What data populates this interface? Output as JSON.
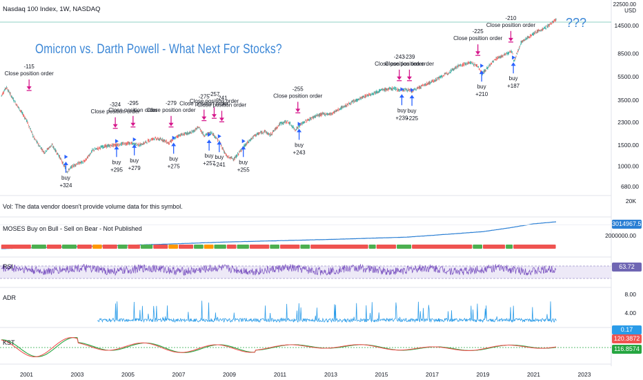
{
  "header": {
    "symbol_line": "Nasdaq 100 Index, 1W, NASDAQ"
  },
  "overlay": {
    "title": "Omicron vs. Darth Powell - What Next For Stocks?",
    "question": "???"
  },
  "price_axis": {
    "unit": "USD",
    "top_label": "22500.00",
    "ticks": [
      "14500.00",
      "8500.00",
      "5500.00",
      "3500.00",
      "2300.00",
      "1500.00",
      "1000.00",
      "680.00"
    ]
  },
  "time_axis": {
    "ticks": [
      "2001",
      "2003",
      "2005",
      "2007",
      "2009",
      "2011",
      "2013",
      "2015",
      "2017",
      "2019",
      "2021",
      "2023"
    ]
  },
  "panes": {
    "vol": {
      "label": "Vol: The data vendor doesn't provide volume data for this symbol.",
      "axis_label": "20K"
    },
    "moses": {
      "label": "MOSES Buy on Bull - Sell on Bear - Not Published",
      "value": "3014967.55",
      "axis_label": "2000000.00",
      "value_color": "#2a7fd4"
    },
    "rsi": {
      "label": "RSI",
      "value": "63.72",
      "value_color": "#6f66b3"
    },
    "adr": {
      "label": "ADR",
      "value": "0.17",
      "ticks": [
        "8.00",
        "4.00"
      ],
      "value_color": "#2a9be8"
    },
    "kst": {
      "label": "KST",
      "value_red": "120.3872",
      "value_green": "116.8574",
      "red_color": "#ef5350",
      "green_color": "#26a641"
    }
  },
  "chart_data": {
    "type": "line",
    "title": "Omicron vs. Darth Powell - What Next For Stocks?",
    "scale": "log",
    "x_range": [
      "2000",
      "2023"
    ],
    "series": [
      {
        "name": "Nasdaq 100 Index",
        "x": [
          2000.0,
          2000.2,
          2000.5,
          2000.8,
          2001.0,
          2001.3,
          2001.7,
          2002.0,
          2002.3,
          2002.6,
          2002.8,
          2003.0,
          2003.3,
          2003.6,
          2004.0,
          2004.5,
          2005.0,
          2005.5,
          2006.0,
          2006.4,
          2006.6,
          2007.0,
          2007.5,
          2007.8,
          2008.0,
          2008.3,
          2008.6,
          2008.9,
          2009.2,
          2009.5,
          2010.0,
          2010.4,
          2010.6,
          2011.0,
          2011.3,
          2011.6,
          2011.8,
          2012.0,
          2012.4,
          2012.7,
          2013.0,
          2013.5,
          2014.0,
          2014.5,
          2015.0,
          2015.5,
          2015.7,
          2016.0,
          2016.2,
          2016.5,
          2017.0,
          2017.5,
          2018.0,
          2018.5,
          2018.8,
          2018.97,
          2019.5,
          2020.0,
          2020.15,
          2020.22,
          2020.5,
          2021.0,
          2021.5,
          2021.9
        ],
        "y": [
          3800,
          4500,
          3500,
          2800,
          2400,
          1700,
          1300,
          1500,
          1200,
          900,
          1000,
          1050,
          1100,
          1350,
          1450,
          1500,
          1550,
          1500,
          1700,
          1650,
          1550,
          1800,
          1900,
          2100,
          1800,
          1900,
          1600,
          1200,
          1150,
          1400,
          1800,
          1950,
          1800,
          2250,
          2350,
          2000,
          2200,
          2350,
          2600,
          2700,
          2700,
          3100,
          3500,
          3900,
          4250,
          4400,
          4250,
          4300,
          4150,
          4500,
          5000,
          5700,
          6700,
          7200,
          6700,
          5800,
          7700,
          8600,
          8900,
          7200,
          10500,
          12500,
          14000,
          16500
        ]
      }
    ],
    "markers": {
      "sells": [
        {
          "label": "-115",
          "text": "Close position order",
          "x": 2001.1,
          "y": 3900
        },
        {
          "label": "-324",
          "text": "Close position order",
          "x": 2004.5,
          "y": 1900
        },
        {
          "label": "-295",
          "text": "Close position order",
          "x": 2005.2,
          "y": 1950
        },
        {
          "label": "-279",
          "text": "Close position order",
          "x": 2006.7,
          "y": 1950
        },
        {
          "label": "-275",
          "text": "Close position order",
          "x": 2008.0,
          "y": 2200
        },
        {
          "label": "-257",
          "text": "Close position order",
          "x": 2008.4,
          "y": 2300
        },
        {
          "label": "-241",
          "text": "Close position order",
          "x": 2008.7,
          "y": 2150
        },
        {
          "label": "-255",
          "text": "Close position order",
          "x": 2011.7,
          "y": 2550
        },
        {
          "label": "-243",
          "text": "Close position order",
          "x": 2015.7,
          "y": 4700
        },
        {
          "label": "-239",
          "text": "Close position order",
          "x": 2016.1,
          "y": 4700
        },
        {
          "label": "-225",
          "text": "Close position order",
          "x": 2018.8,
          "y": 7600
        },
        {
          "label": "-210",
          "text": "Close position order",
          "x": 2020.1,
          "y": 9800
        }
      ],
      "buys": [
        {
          "label": "buy",
          "value": "+324",
          "x": 2002.55,
          "y": 1150
        },
        {
          "label": "buy",
          "value": "+295",
          "x": 2004.55,
          "y": 1550
        },
        {
          "label": "buy",
          "value": "+279",
          "x": 2005.25,
          "y": 1600
        },
        {
          "label": "buy",
          "value": "+275",
          "x": 2006.8,
          "y": 1650
        },
        {
          "label": "buy",
          "value": "+257",
          "x": 2008.2,
          "y": 1750
        },
        {
          "label": "buy",
          "value": "+241",
          "x": 2008.6,
          "y": 1700
        },
        {
          "label": "buy",
          "value": "+255",
          "x": 2009.55,
          "y": 1550
        },
        {
          "label": "buy",
          "value": "+243",
          "x": 2011.75,
          "y": 2150
        },
        {
          "label": "buy",
          "value": "+239",
          "x": 2015.8,
          "y": 4150
        },
        {
          "label": "buy",
          "value": "+225",
          "x": 2016.2,
          "y": 4100
        },
        {
          "label": "buy",
          "value": "+210",
          "x": 2018.95,
          "y": 6500
        },
        {
          "label": "buy",
          "value": "+187",
          "x": 2020.2,
          "y": 7600
        }
      ]
    },
    "moses_series": {
      "x": [
        2000,
        2006,
        2009,
        2013,
        2016,
        2018,
        2019,
        2020,
        2021,
        2021.9
      ],
      "y": [
        80000,
        140000,
        200000,
        280000,
        380000,
        620000,
        800000,
        1300000,
        2300000,
        3014967
      ]
    },
    "moses_bands": {
      "colors": [
        "#4caf50",
        "#ef5350",
        "#ff9800"
      ],
      "segments": [
        [
          2000,
          2001.2,
          1
        ],
        [
          2001.2,
          2001.8,
          0
        ],
        [
          2001.8,
          2002.4,
          1
        ],
        [
          2002.4,
          2003.0,
          0
        ],
        [
          2003.0,
          2003.6,
          1
        ],
        [
          2003.6,
          2004.0,
          2
        ],
        [
          2004.0,
          2004.6,
          1
        ],
        [
          2004.6,
          2005.0,
          0
        ],
        [
          2005.0,
          2005.5,
          1
        ],
        [
          2005.5,
          2006.0,
          0
        ],
        [
          2006.0,
          2006.6,
          1
        ],
        [
          2006.6,
          2007.0,
          2
        ],
        [
          2007.0,
          2007.6,
          1
        ],
        [
          2007.6,
          2008.0,
          0
        ],
        [
          2008.0,
          2008.4,
          2
        ],
        [
          2008.4,
          2008.9,
          0
        ],
        [
          2008.9,
          2009.3,
          1
        ],
        [
          2009.3,
          2009.8,
          0
        ],
        [
          2009.8,
          2010.6,
          1
        ],
        [
          2010.6,
          2011.0,
          0
        ],
        [
          2011.0,
          2011.8,
          1
        ],
        [
          2011.8,
          2012.2,
          0
        ],
        [
          2012.2,
          2014.5,
          1
        ],
        [
          2014.5,
          2014.8,
          0
        ],
        [
          2014.8,
          2015.6,
          1
        ],
        [
          2015.6,
          2016.2,
          0
        ],
        [
          2016.2,
          2018.6,
          1
        ],
        [
          2018.6,
          2019.0,
          0
        ],
        [
          2019.0,
          2019.9,
          1
        ],
        [
          2019.9,
          2020.2,
          0
        ],
        [
          2020.2,
          2021.9,
          1
        ]
      ]
    },
    "rsi": {
      "levels": [
        70,
        30
      ],
      "typical": 58
    },
    "adr": {
      "start": 2003.8,
      "max_tick": 8,
      "typical": 1.0
    },
    "kst": {
      "typical": 0
    }
  }
}
